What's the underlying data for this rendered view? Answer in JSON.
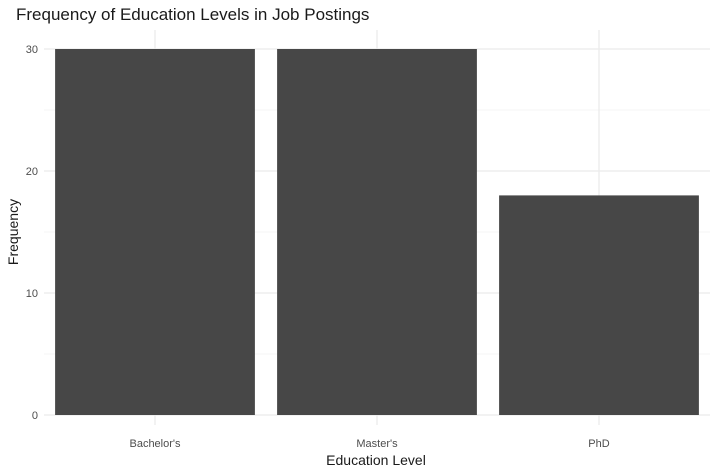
{
  "chart_data": {
    "type": "bar",
    "title": "Frequency of Education Levels in Job Postings",
    "xlabel": "Education Level",
    "ylabel": "Frequency",
    "categories": [
      "Bachelor's",
      "Master's",
      "PhD"
    ],
    "values": [
      30,
      30,
      18
    ],
    "yticks": [
      0,
      10,
      20,
      30
    ],
    "ylim": [
      0,
      31.5
    ],
    "grid": true,
    "bar_color": "#474747",
    "grid_major_color": "#ebebeb",
    "grid_minor_color": "#f2f2f2"
  }
}
